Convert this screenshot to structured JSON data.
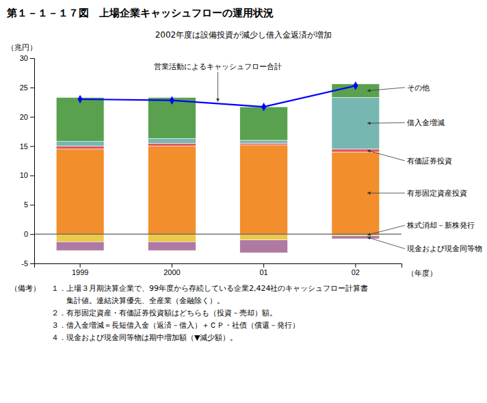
{
  "chart_data": {
    "type": "bar",
    "stacked": true,
    "grid": false,
    "title": "第１－１－１７図　上場企業キャッシュフローの運用状況",
    "subtitle": "2002年度は設備投資が減少し借入金返済が増加",
    "ylabel": "（兆円）",
    "xlabel": "（年度）",
    "categories": [
      "1999",
      "2000",
      "01",
      "02"
    ],
    "ylim": [
      -5,
      30
    ],
    "yticks": [
      -5,
      0,
      5,
      10,
      15,
      20,
      25,
      30
    ],
    "series": [
      {
        "name": "有形固定資産投資",
        "type": "bar",
        "values": [
          14.5,
          15.0,
          15.2,
          14.0
        ]
      },
      {
        "name": "有価証券投資",
        "type": "bar",
        "values": [
          0.5,
          0.5,
          0.3,
          0.5
        ]
      },
      {
        "name": "借入金増減",
        "type": "bar",
        "values": [
          0.8,
          0.8,
          0.5,
          8.8
        ]
      },
      {
        "name": "その他",
        "type": "bar",
        "values": [
          7.5,
          7.0,
          5.7,
          2.3
        ]
      },
      {
        "name": "株式消却－新株発行",
        "type": "bar",
        "values": [
          -1.3,
          -1.3,
          -1.0,
          -0.3
        ]
      },
      {
        "name": "現金および現金同等物",
        "type": "bar",
        "values": [
          -1.5,
          -1.5,
          -2.2,
          -0.5
        ]
      },
      {
        "name": "営業活動によるキャッシュフロー合計",
        "type": "line",
        "color": "blue",
        "marker": "diamond",
        "values": [
          23.0,
          22.8,
          21.7,
          25.3
        ]
      }
    ],
    "notes_header": "（備考）",
    "notes": [
      "１．上場３月期決算企業で、99年度から存続している企業2,424社のキャッシュフロー計算書",
      "　　集計値。連結決算優先、全産業（金融除く）。",
      "２．有形固定資産・有価証券投資額はどちらも（投資－売却）額。",
      "３．借入金増減＝長短借入金（返済－借入）＋ＣＰ・社債（償還－発行）",
      "４．現金および現金同等物は期中増加額（▼減少額）。"
    ]
  }
}
